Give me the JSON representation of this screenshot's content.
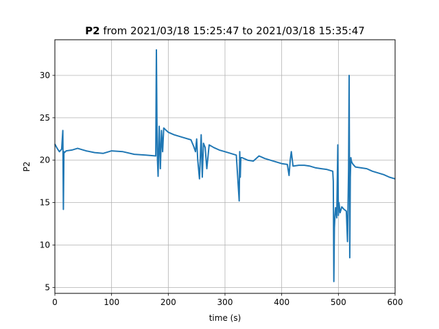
{
  "chart_data": {
    "type": "line",
    "title": {
      "bold": "P2",
      "rest": " from 2021/03/18 15:25:47 to 2021/03/18 15:35:47"
    },
    "xlabel": "time (s)",
    "ylabel": "P2",
    "xlim": [
      0,
      600
    ],
    "ylim": [
      4.3,
      34.2
    ],
    "xticks": [
      0,
      100,
      200,
      300,
      400,
      500,
      600
    ],
    "yticks": [
      5,
      10,
      15,
      20,
      25,
      30
    ],
    "grid": true,
    "color": "#1f77b4",
    "series": [
      {
        "x": [
          0,
          4,
          8,
          12,
          14,
          15,
          16,
          17,
          20,
          30,
          40,
          55,
          70,
          85,
          100,
          120,
          140,
          160,
          178,
          179,
          180,
          181,
          182,
          184,
          186,
          188,
          190,
          192,
          195,
          200,
          210,
          225,
          240,
          245,
          248,
          250,
          252,
          255,
          258,
          260,
          262,
          265,
          268,
          272,
          275,
          280,
          290,
          300,
          310,
          320,
          325,
          326,
          327,
          328,
          330,
          340,
          350,
          360,
          370,
          380,
          390,
          400,
          410,
          413,
          415,
          417,
          420,
          430,
          440,
          450,
          460,
          470,
          480,
          490,
          491,
          492,
          493,
          494,
          495,
          497,
          499,
          500,
          501,
          503,
          506,
          510,
          514,
          516,
          518,
          519,
          520,
          521,
          522,
          523,
          524,
          526,
          530,
          540,
          550,
          560,
          570,
          580,
          590,
          600
        ],
        "values": [
          21.9,
          21.4,
          21.0,
          21.3,
          23.5,
          14.2,
          21.0,
          20.9,
          21.1,
          21.2,
          21.4,
          21.1,
          20.9,
          20.8,
          21.1,
          21.0,
          20.7,
          20.6,
          20.5,
          33.0,
          24.5,
          20.0,
          18.1,
          24.0,
          19.0,
          23.5,
          21.0,
          23.8,
          23.6,
          23.3,
          23.0,
          22.7,
          22.4,
          21.6,
          21.0,
          22.5,
          20.0,
          17.8,
          23.0,
          18.0,
          22.0,
          21.5,
          19.0,
          21.8,
          21.7,
          21.5,
          21.2,
          21.0,
          20.8,
          20.6,
          15.2,
          21.0,
          18.0,
          20.3,
          20.3,
          20.0,
          19.9,
          20.5,
          20.2,
          20.0,
          19.8,
          19.6,
          19.5,
          18.2,
          20.0,
          21.0,
          19.3,
          19.4,
          19.4,
          19.3,
          19.1,
          19.0,
          18.9,
          18.7,
          17.5,
          5.7,
          12.0,
          13.6,
          14.4,
          13.2,
          21.8,
          13.5,
          15.0,
          13.8,
          14.5,
          14.2,
          14.0,
          10.4,
          19.0,
          30.0,
          8.5,
          18.0,
          20.3,
          19.9,
          19.7,
          19.5,
          19.2,
          19.1,
          19.0,
          18.7,
          18.5,
          18.3,
          18.0,
          17.8
        ]
      }
    ]
  }
}
